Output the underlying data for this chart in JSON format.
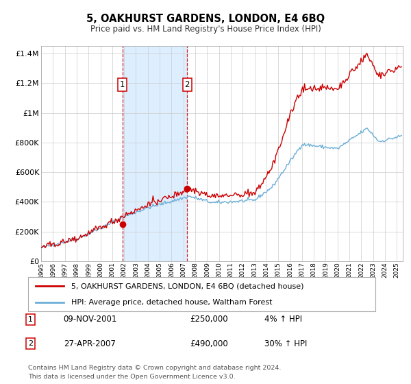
{
  "title": "5, OAKHURST GARDENS, LONDON, E4 6BQ",
  "subtitle": "Price paid vs. HM Land Registry's House Price Index (HPI)",
  "legend_line1": "5, OAKHURST GARDENS, LONDON, E4 6BQ (detached house)",
  "legend_line2": "HPI: Average price, detached house, Waltham Forest",
  "transaction1_date": "09-NOV-2001",
  "transaction1_price": "£250,000",
  "transaction1_pct": "4% ↑ HPI",
  "transaction1_year": 2001.86,
  "transaction1_value": 250000,
  "transaction2_date": "27-APR-2007",
  "transaction2_price": "£490,000",
  "transaction2_pct": "30% ↑ HPI",
  "transaction2_year": 2007.32,
  "transaction2_value": 490000,
  "hpi_color": "#6baed6",
  "price_color": "#cc0000",
  "dot_color": "#cc0000",
  "vline_color": "#cc0000",
  "shade_color": "#ddeeff",
  "grid_color": "#cccccc",
  "footer": "Contains HM Land Registry data © Crown copyright and database right 2024.\nThis data is licensed under the Open Government Licence v3.0.",
  "ylim": [
    0,
    1450000
  ],
  "xlim_start": 1995.0,
  "xlim_end": 2025.5
}
